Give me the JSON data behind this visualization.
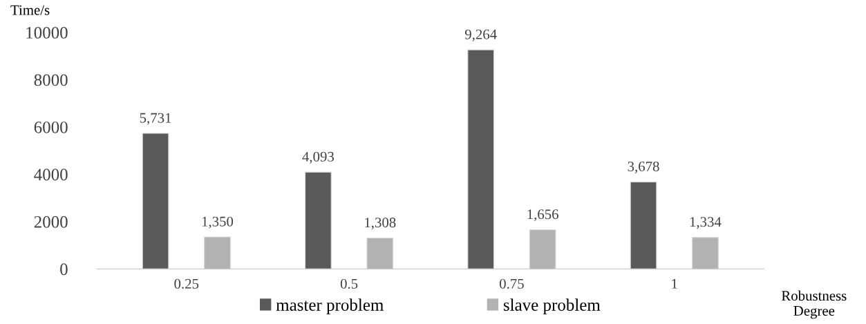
{
  "chart_data": {
    "type": "bar",
    "categories": [
      "0.25",
      "0.5",
      "0.75",
      "1"
    ],
    "series": [
      {
        "name": "master problem",
        "color": "#595959",
        "values": [
          5731,
          4093,
          9264,
          3678
        ],
        "value_labels": [
          "5,731",
          "4,093",
          "9,264",
          "3,678"
        ]
      },
      {
        "name": "slave problem",
        "color": "#b2b2b2",
        "values": [
          1350,
          1308,
          1656,
          1334
        ],
        "value_labels": [
          "1,350",
          "1,308",
          "1,656",
          "1,334"
        ]
      }
    ],
    "ylabel": "Time/s",
    "xlabel": "Robustness\nDegree",
    "ylim": [
      0,
      10000
    ],
    "yticks": [
      0,
      2000,
      4000,
      6000,
      8000,
      10000
    ],
    "grid": false,
    "legend": "bottom"
  }
}
